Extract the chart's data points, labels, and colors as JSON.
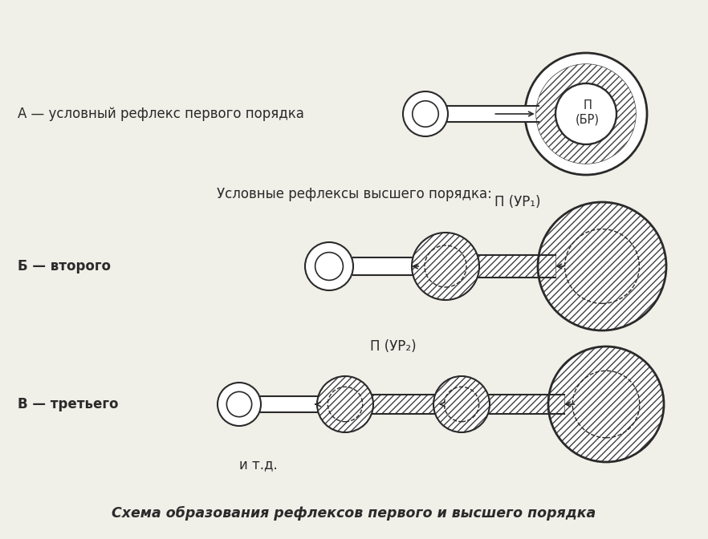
{
  "bg_color": "#f0efe8",
  "line_color": "#2a2a2a",
  "hatch_color": "#404040",
  "title_A": "А — условный рефлекс первого порядка",
  "title_B": "Б — второго",
  "title_C": "В — третьего",
  "subtitle": "Условные рефлексы высшего порядка:",
  "label_P_BR": "П\n(БР)",
  "label_P_UR1": "П (УР₁)",
  "label_P_UR2": "П (УР₂)",
  "label_itd": "и т.д.",
  "footer": "Схема образования рефлексов первого и высшего порядка"
}
